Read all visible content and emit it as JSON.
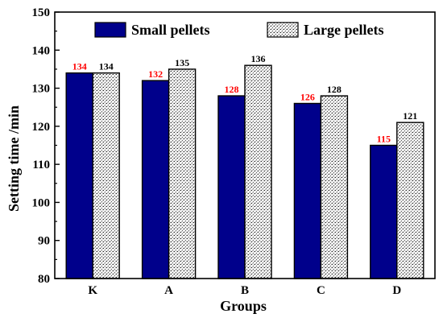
{
  "chart_data": {
    "type": "bar",
    "title": "",
    "xlabel": "Groups",
    "ylabel": "Setting time /min",
    "categories": [
      "K",
      "A",
      "B",
      "C",
      "D"
    ],
    "ylim": [
      80,
      150
    ],
    "yticks": [
      80,
      90,
      100,
      110,
      120,
      130,
      140,
      150
    ],
    "grid": false,
    "legend_position": "top",
    "series": [
      {
        "name": "Small pellets",
        "values": [
          134,
          132,
          128,
          126,
          115
        ],
        "color": "#00008b",
        "label_color": "#ff0000",
        "fill": "solid"
      },
      {
        "name": "Large pellets",
        "values": [
          134,
          135,
          136,
          128,
          121
        ],
        "color": "#e6e6e6",
        "label_color": "#000000",
        "fill": "stippled"
      }
    ]
  }
}
